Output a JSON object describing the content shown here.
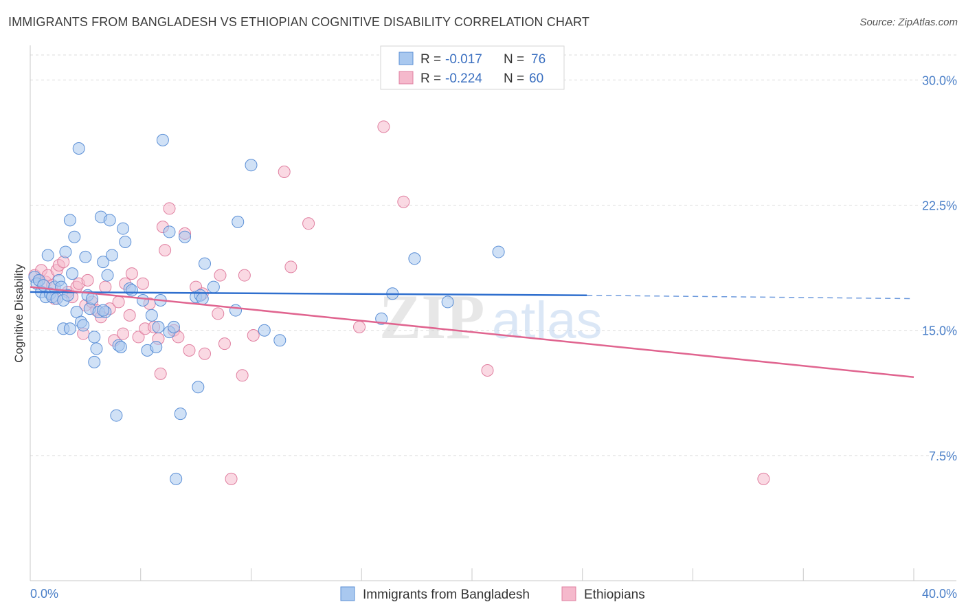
{
  "header": {
    "title": "IMMIGRANTS FROM BANGLADESH VS ETHIOPIAN COGNITIVE DISABILITY CORRELATION CHART",
    "source": "Source: ZipAtlas.com"
  },
  "watermark": {
    "zip": "ZIP",
    "atlas": "atlas"
  },
  "colors": {
    "blue_fill": "#a9c8ef",
    "blue_stroke": "#5b8fd6",
    "blue_line": "#2f6fce",
    "pink_fill": "#f5b9cc",
    "pink_stroke": "#e07fa0",
    "pink_line": "#e0648f",
    "tick_text": "#4a7fc8",
    "grid": "#dcdcdc"
  },
  "chart_data": {
    "type": "scatter",
    "title": "IMMIGRANTS FROM BANGLADESH VS ETHIOPIAN COGNITIVE DISABILITY CORRELATION CHART",
    "ylabel": "Cognitive Disability",
    "xlim": [
      0,
      40
    ],
    "ylim": [
      0,
      31.5
    ],
    "x_tick_labels": [
      "0.0%",
      "40.0%"
    ],
    "y_ticks": [
      7.5,
      15.0,
      22.5,
      30.0
    ],
    "y_tick_labels": [
      "7.5%",
      "15.0%",
      "22.5%",
      "30.0%"
    ],
    "grid": true,
    "legend": {
      "position": "top-center",
      "entries": [
        {
          "r_label": "R = ",
          "r_value": "-0.017",
          "n_label": "N = ",
          "n_value": "76"
        },
        {
          "r_label": "R = ",
          "r_value": "-0.224",
          "n_label": "N = ",
          "n_value": "60"
        }
      ]
    },
    "series": [
      {
        "name": "Immigrants from Bangladesh",
        "trend": {
          "x0": 0.0,
          "y0": 17.3,
          "x1": 25.2,
          "y1": 17.1,
          "x_dash_end": 40.0,
          "y_dash_end": 16.9
        },
        "points": [
          [
            0.2,
            18.2
          ],
          [
            0.3,
            17.8
          ],
          [
            0.4,
            18.0
          ],
          [
            0.5,
            17.3
          ],
          [
            0.6,
            17.7
          ],
          [
            0.7,
            17.0
          ],
          [
            0.8,
            19.5
          ],
          [
            0.9,
            17.2
          ],
          [
            1.0,
            17.0
          ],
          [
            1.1,
            17.6
          ],
          [
            1.2,
            16.9
          ],
          [
            1.3,
            18.0
          ],
          [
            1.4,
            17.6
          ],
          [
            1.5,
            16.8
          ],
          [
            1.5,
            15.1
          ],
          [
            1.6,
            19.7
          ],
          [
            1.7,
            17.1
          ],
          [
            1.8,
            15.1
          ],
          [
            1.8,
            21.6
          ],
          [
            1.9,
            18.4
          ],
          [
            2.0,
            20.6
          ],
          [
            2.1,
            16.1
          ],
          [
            2.2,
            25.9
          ],
          [
            2.3,
            15.5
          ],
          [
            2.4,
            15.3
          ],
          [
            2.5,
            19.4
          ],
          [
            2.6,
            17.1
          ],
          [
            2.7,
            16.3
          ],
          [
            2.8,
            16.9
          ],
          [
            2.9,
            14.6
          ],
          [
            2.9,
            13.1
          ],
          [
            3.0,
            13.9
          ],
          [
            3.1,
            16.1
          ],
          [
            3.2,
            21.8
          ],
          [
            3.3,
            19.1
          ],
          [
            3.4,
            16.1
          ],
          [
            3.5,
            18.3
          ],
          [
            3.6,
            21.6
          ],
          [
            3.7,
            19.5
          ],
          [
            3.9,
            9.9
          ],
          [
            4.0,
            14.1
          ],
          [
            4.1,
            14.0
          ],
          [
            4.2,
            21.1
          ],
          [
            4.3,
            20.3
          ],
          [
            4.5,
            17.5
          ],
          [
            4.6,
            17.4
          ],
          [
            5.1,
            16.8
          ],
          [
            5.3,
            13.8
          ],
          [
            5.5,
            15.9
          ],
          [
            5.7,
            14.0
          ],
          [
            5.8,
            15.2
          ],
          [
            5.9,
            16.8
          ],
          [
            6.0,
            26.4
          ],
          [
            6.3,
            20.9
          ],
          [
            6.3,
            14.9
          ],
          [
            6.5,
            15.2
          ],
          [
            6.6,
            6.1
          ],
          [
            6.8,
            10.0
          ],
          [
            7.0,
            20.6
          ],
          [
            7.5,
            17.0
          ],
          [
            7.6,
            11.6
          ],
          [
            7.7,
            17.1
          ],
          [
            7.8,
            16.9
          ],
          [
            7.9,
            19.0
          ],
          [
            8.3,
            17.6
          ],
          [
            9.3,
            16.2
          ],
          [
            9.4,
            21.5
          ],
          [
            10.0,
            24.9
          ],
          [
            10.6,
            15.0
          ],
          [
            11.3,
            14.4
          ],
          [
            15.9,
            15.7
          ],
          [
            16.4,
            17.2
          ],
          [
            17.4,
            19.3
          ],
          [
            18.9,
            16.7
          ],
          [
            21.2,
            19.7
          ],
          [
            3.3,
            16.2
          ]
        ]
      },
      {
        "name": "Ethiopians",
        "trend": {
          "x0": 0.0,
          "y0": 17.6,
          "x1": 40.0,
          "y1": 12.2
        },
        "points": [
          [
            0.2,
            18.3
          ],
          [
            0.4,
            18.0
          ],
          [
            0.5,
            18.6
          ],
          [
            0.7,
            17.9
          ],
          [
            0.8,
            18.3
          ],
          [
            1.0,
            17.7
          ],
          [
            1.1,
            16.9
          ],
          [
            1.2,
            18.6
          ],
          [
            1.3,
            18.9
          ],
          [
            1.5,
            19.1
          ],
          [
            1.7,
            17.3
          ],
          [
            1.9,
            17.0
          ],
          [
            2.1,
            17.6
          ],
          [
            2.2,
            17.8
          ],
          [
            2.4,
            14.8
          ],
          [
            2.5,
            16.5
          ],
          [
            2.6,
            18.0
          ],
          [
            2.8,
            16.7
          ],
          [
            3.0,
            16.2
          ],
          [
            3.2,
            15.8
          ],
          [
            3.4,
            17.6
          ],
          [
            3.6,
            16.3
          ],
          [
            3.8,
            14.4
          ],
          [
            4.0,
            16.7
          ],
          [
            4.2,
            14.8
          ],
          [
            4.3,
            17.8
          ],
          [
            4.5,
            15.9
          ],
          [
            4.6,
            18.4
          ],
          [
            4.9,
            14.6
          ],
          [
            5.1,
            17.8
          ],
          [
            5.2,
            15.1
          ],
          [
            5.4,
            16.6
          ],
          [
            5.6,
            15.2
          ],
          [
            5.8,
            14.5
          ],
          [
            5.9,
            12.4
          ],
          [
            6.0,
            21.2
          ],
          [
            6.1,
            19.8
          ],
          [
            6.3,
            22.3
          ],
          [
            6.5,
            15.0
          ],
          [
            6.7,
            14.6
          ],
          [
            7.0,
            20.8
          ],
          [
            7.2,
            13.8
          ],
          [
            7.5,
            17.6
          ],
          [
            7.8,
            17.2
          ],
          [
            7.9,
            13.6
          ],
          [
            8.5,
            16.0
          ],
          [
            8.6,
            18.3
          ],
          [
            8.8,
            14.2
          ],
          [
            9.1,
            6.1
          ],
          [
            9.6,
            12.3
          ],
          [
            9.7,
            18.3
          ],
          [
            10.1,
            14.7
          ],
          [
            11.5,
            24.5
          ],
          [
            11.8,
            18.8
          ],
          [
            12.6,
            21.4
          ],
          [
            14.9,
            15.2
          ],
          [
            16.0,
            27.2
          ],
          [
            16.9,
            22.7
          ],
          [
            20.7,
            12.6
          ],
          [
            33.2,
            6.1
          ]
        ]
      }
    ]
  }
}
